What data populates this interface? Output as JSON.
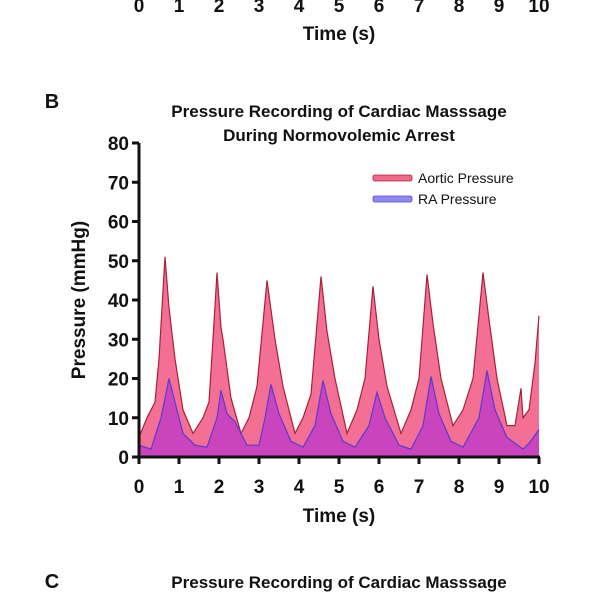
{
  "top_panel_fragment": {
    "x_tick_labels": [
      "0",
      "1",
      "2",
      "3",
      "4",
      "5",
      "6",
      "7",
      "8",
      "9",
      "10"
    ],
    "xlabel": "Time (s)"
  },
  "panel_b": {
    "letter": "B",
    "title_line1": "Pressure Recording of Cardiac Masssage",
    "title_line2": "During Normovolemic Arrest"
  },
  "panel_c": {
    "letter": "C",
    "title_line1": "Pressure Recording of Cardiac Masssage"
  },
  "chart_data": {
    "type": "area",
    "title": "Pressure Recording of Cardiac Masssage During Normovolemic Arrest",
    "xlabel": "Time (s)",
    "ylabel": "Pressure (mmHg)",
    "xlim": [
      0,
      10
    ],
    "ylim": [
      0,
      80
    ],
    "x_ticks": [
      0,
      1,
      2,
      3,
      4,
      5,
      6,
      7,
      8,
      9,
      10
    ],
    "y_ticks": [
      0,
      10,
      20,
      30,
      40,
      50,
      60,
      70,
      80
    ],
    "grid": false,
    "legend_placement": "top-right",
    "series": [
      {
        "name": "Aortic Pressure",
        "fill_color": "#f2688e",
        "line_color": "#a8203c",
        "legend_color": "#ee6a86",
        "points": [
          [
            0,
            5
          ],
          [
            0.2,
            10
          ],
          [
            0.4,
            14
          ],
          [
            0.5,
            25
          ],
          [
            0.65,
            51
          ],
          [
            0.75,
            38
          ],
          [
            0.9,
            25
          ],
          [
            1.1,
            12
          ],
          [
            1.35,
            6
          ],
          [
            1.6,
            10
          ],
          [
            1.75,
            14
          ],
          [
            1.85,
            30
          ],
          [
            1.95,
            47
          ],
          [
            2.05,
            33
          ],
          [
            2.1,
            30
          ],
          [
            2.3,
            15
          ],
          [
            2.55,
            6
          ],
          [
            2.75,
            10
          ],
          [
            2.95,
            18
          ],
          [
            3.2,
            45
          ],
          [
            3.4,
            30
          ],
          [
            3.6,
            18
          ],
          [
            3.9,
            6
          ],
          [
            4.1,
            10
          ],
          [
            4.3,
            16
          ],
          [
            4.55,
            46
          ],
          [
            4.7,
            32
          ],
          [
            4.9,
            20
          ],
          [
            5.2,
            6
          ],
          [
            5.45,
            12
          ],
          [
            5.65,
            20
          ],
          [
            5.85,
            43.5
          ],
          [
            6.0,
            30
          ],
          [
            6.2,
            18
          ],
          [
            6.55,
            6
          ],
          [
            6.8,
            12
          ],
          [
            7.0,
            20
          ],
          [
            7.2,
            46.5
          ],
          [
            7.35,
            34
          ],
          [
            7.55,
            20
          ],
          [
            7.85,
            8
          ],
          [
            8.1,
            12
          ],
          [
            8.35,
            20
          ],
          [
            8.6,
            47
          ],
          [
            8.75,
            35
          ],
          [
            8.95,
            20
          ],
          [
            9.2,
            8
          ],
          [
            9.4,
            8
          ],
          [
            9.55,
            17.5
          ],
          [
            9.6,
            10
          ],
          [
            9.75,
            12
          ],
          [
            9.9,
            24
          ],
          [
            10,
            36
          ]
        ]
      },
      {
        "name": "RA Pressure",
        "fill_color": "#c23cc4",
        "line_color": "#5a3cd0",
        "legend_color": "#8c8cf0",
        "points": [
          [
            0,
            3
          ],
          [
            0.3,
            2
          ],
          [
            0.55,
            10
          ],
          [
            0.75,
            20
          ],
          [
            0.9,
            14
          ],
          [
            1.1,
            6
          ],
          [
            1.4,
            3
          ],
          [
            1.7,
            2.5
          ],
          [
            1.95,
            10
          ],
          [
            2.05,
            17
          ],
          [
            2.2,
            11
          ],
          [
            2.4,
            9
          ],
          [
            2.7,
            3
          ],
          [
            3.0,
            3
          ],
          [
            3.15,
            10
          ],
          [
            3.3,
            18.5
          ],
          [
            3.5,
            11
          ],
          [
            3.8,
            4
          ],
          [
            4.1,
            2.5
          ],
          [
            4.4,
            8
          ],
          [
            4.6,
            19.5
          ],
          [
            4.8,
            11
          ],
          [
            5.1,
            4
          ],
          [
            5.4,
            2.5
          ],
          [
            5.75,
            8
          ],
          [
            5.95,
            16.5
          ],
          [
            6.15,
            10
          ],
          [
            6.5,
            3
          ],
          [
            6.8,
            2
          ],
          [
            7.1,
            8
          ],
          [
            7.3,
            20.5
          ],
          [
            7.5,
            11
          ],
          [
            7.8,
            4
          ],
          [
            8.1,
            2.5
          ],
          [
            8.5,
            10
          ],
          [
            8.7,
            22
          ],
          [
            8.9,
            12
          ],
          [
            9.2,
            5
          ],
          [
            9.6,
            2
          ],
          [
            9.75,
            3.5
          ],
          [
            10,
            7
          ]
        ]
      }
    ]
  }
}
